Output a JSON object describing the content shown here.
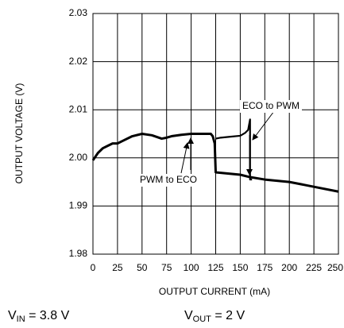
{
  "chart_data": {
    "type": "line",
    "y_label": "OUTPUT VOLTAGE (V)",
    "x_label": "OUTPUT CURRENT (mA)",
    "xlim": [
      0,
      250
    ],
    "xticks": [
      0,
      25,
      50,
      75,
      100,
      125,
      150,
      175,
      200,
      225,
      250
    ],
    "ylim": [
      1.98,
      2.03
    ],
    "yticks": [
      1.98,
      1.99,
      {
        "value": 2.0,
        "label": "2.00"
      },
      2.01,
      2.02,
      2.03
    ],
    "grid": true,
    "series": [
      {
        "color": "#000000",
        "x": [
          0,
          5,
          10,
          15,
          20,
          25,
          30,
          40,
          50,
          60,
          70,
          75,
          80,
          90,
          100,
          110,
          120,
          122,
          124,
          125,
          150,
          160,
          175,
          200,
          225,
          250
        ],
        "values": [
          1.9995,
          2.001,
          2.002,
          2.0025,
          2.003,
          2.003,
          2.0035,
          2.0045,
          2.005,
          2.0047,
          2.004,
          2.0042,
          2.0045,
          2.0048,
          2.005,
          2.005,
          2.005,
          2.0045,
          2.003,
          1.997,
          1.9965,
          1.996,
          1.9955,
          1.995,
          1.994,
          1.993
        ]
      },
      {
        "color": "#000000",
        "x": [
          162,
          160,
          160,
          158,
          155,
          150,
          140,
          130,
          125
        ],
        "values": [
          1.9955,
          1.9955,
          2.008,
          2.0058,
          2.0052,
          2.0046,
          2.0044,
          2.0042,
          2.004
        ]
      }
    ],
    "annotations": [
      "ECO to PWM",
      "PWM to ECO"
    ],
    "conditions": [
      {
        "symbol": "V",
        "subscript": "IN",
        "text": " = 3.8 V"
      },
      {
        "symbol": "V",
        "subscript": "OUT",
        "text": " = 2 V"
      }
    ]
  }
}
